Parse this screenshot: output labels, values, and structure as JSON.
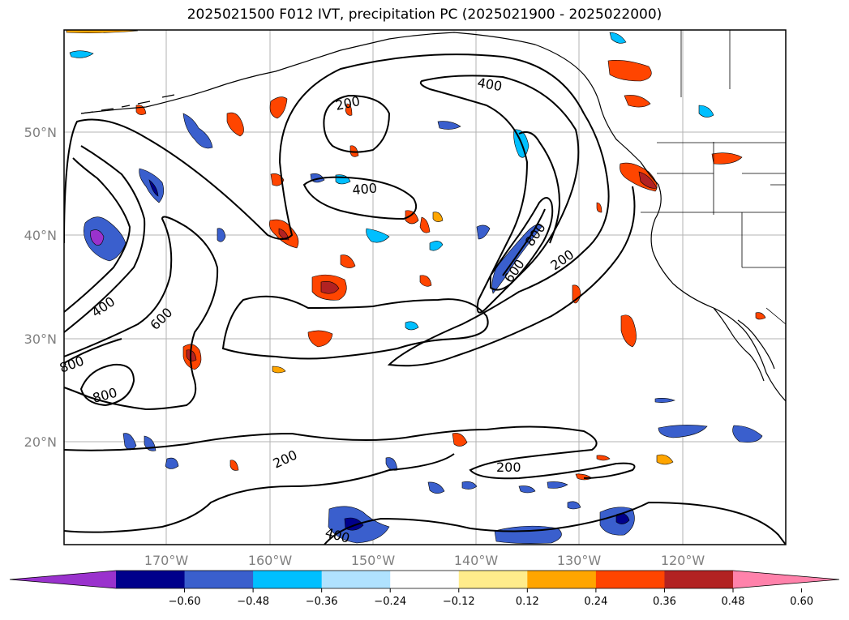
{
  "title": "2025021500 F012 IVT, precipitation PC (2025021900 - 2025022000)",
  "lat_labels": [
    "50°N",
    "40°N",
    "30°N",
    "20°N"
  ],
  "lon_labels": [
    "170°W",
    "160°W",
    "150°W",
    "140°W",
    "130°W",
    "120°W"
  ],
  "contour_labels": [
    "200",
    "400",
    "400",
    "400",
    "200",
    "800",
    "600",
    "200",
    "600",
    "400",
    "800",
    "800",
    "600",
    "200",
    "200",
    "400"
  ],
  "colorbar": {
    "ticks": [
      "−0.60",
      "−0.48",
      "−0.36",
      "−0.24",
      "−0.12",
      "0.12",
      "0.24",
      "0.36",
      "0.48",
      "0.60"
    ],
    "colors": [
      "#9a32cd",
      "#00008b",
      "#3a5fcd",
      "#00bfff",
      "#b0e2ff",
      "#ffffff",
      "#ffec8b",
      "#ffa500",
      "#ff4500",
      "#b22222",
      "#ff82ab"
    ]
  }
}
